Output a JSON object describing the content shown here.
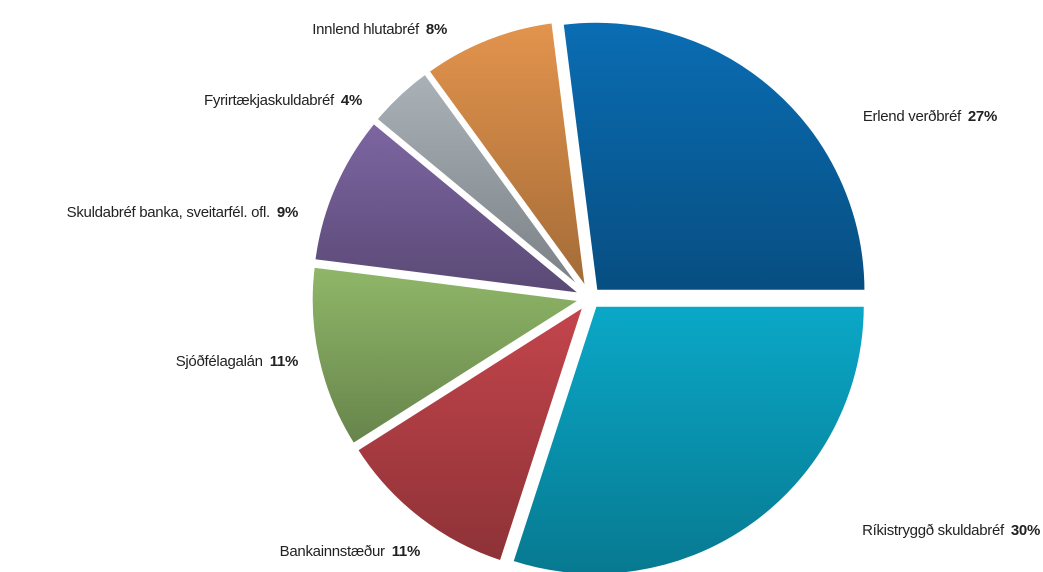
{
  "chart_data": {
    "type": "pie",
    "categories": [
      "Erlend verðbréf",
      "Ríkistryggð skuldabréf",
      "Bankainnstæður",
      "Sjóðfélagalán",
      "Skuldabréf banka, sveitarfél. ofl.",
      "Fyrirtækjaskuldabréf",
      "Innlend hlutabréf"
    ],
    "values": [
      27,
      30,
      11,
      11,
      9,
      4,
      8
    ],
    "value_labels": [
      "27%",
      "30%",
      "11%",
      "11%",
      "9%",
      "4%",
      "8%"
    ],
    "colors": [
      "#0a6db3",
      "#0aa8c8",
      "#c4454c",
      "#8fb768",
      "#7d66a2",
      "#aab2b8",
      "#e3944d"
    ]
  }
}
